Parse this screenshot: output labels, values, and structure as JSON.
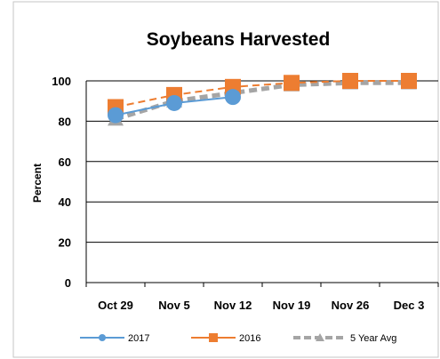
{
  "chart_data": {
    "type": "line",
    "title": "Soybeans Harvested",
    "xlabel": "",
    "ylabel": "Percent",
    "categories": [
      "Oct 29",
      "Nov 5",
      "Nov 12",
      "Nov 19",
      "Nov 26",
      "Dec 3"
    ],
    "ylim": [
      0,
      100
    ],
    "yticks": [
      0,
      20,
      40,
      60,
      80,
      100
    ],
    "grid": true,
    "legend_position": "bottom",
    "series": [
      {
        "name": "2017",
        "color": "#5b9bd5",
        "marker": "circle",
        "dash": "solid",
        "values": [
          83,
          89,
          92,
          null,
          null,
          null
        ]
      },
      {
        "name": "2016",
        "color": "#ed7d31",
        "marker": "square",
        "dash": "dashed",
        "values": [
          87,
          93,
          97,
          99,
          100,
          100
        ]
      },
      {
        "name": "5 Year Avg",
        "color": "#a5a5a5",
        "marker": "triangle",
        "dash": "dashed",
        "values": [
          81,
          90,
          94,
          98,
          99,
          99
        ]
      }
    ]
  }
}
